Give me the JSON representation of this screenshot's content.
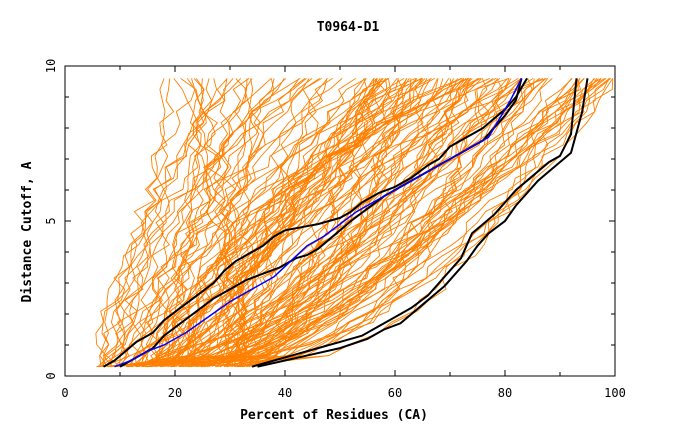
{
  "chart_data": {
    "type": "line",
    "title": "T0964-D1",
    "xlabel": "Percent of Residues (CA)",
    "ylabel": "Distance Cutoff, A",
    "xlim": [
      0,
      100
    ],
    "ylim": [
      0,
      10
    ],
    "x_ticks": [
      0,
      20,
      40,
      60,
      80,
      100
    ],
    "y_ticks": [
      0,
      5,
      10
    ],
    "grid": false,
    "colors": {
      "models": "#ff8000",
      "highlight": "#000000",
      "reference": "#0000ff"
    },
    "model_curves_description_count": 0,
    "series": [
      {
        "role": "highlight",
        "color": "#000000",
        "x": [
          7,
          9,
          11,
          13,
          16,
          18,
          21,
          24,
          27,
          29,
          31,
          33,
          36,
          38,
          40,
          43,
          46,
          48,
          50,
          52,
          54,
          57,
          60,
          63,
          66,
          68,
          70,
          72,
          74,
          76,
          78,
          80,
          82,
          84
        ],
        "y": [
          0.3,
          0.5,
          0.8,
          1.1,
          1.4,
          1.8,
          2.2,
          2.6,
          3.0,
          3.4,
          3.7,
          3.9,
          4.2,
          4.5,
          4.7,
          4.8,
          4.9,
          5.0,
          5.1,
          5.3,
          5.6,
          5.9,
          6.1,
          6.4,
          6.8,
          7.0,
          7.4,
          7.6,
          7.8,
          8.0,
          8.3,
          8.6,
          9.0,
          9.6
        ]
      },
      {
        "role": "highlight",
        "color": "#000000",
        "x": [
          10,
          13,
          16,
          18,
          21,
          24,
          27,
          30,
          33,
          36,
          39,
          42,
          44,
          46,
          48,
          50,
          52,
          55,
          58,
          61,
          64,
          67,
          70,
          73,
          76,
          78,
          80,
          82,
          83
        ],
        "y": [
          0.3,
          0.6,
          0.9,
          1.3,
          1.7,
          2.1,
          2.5,
          2.8,
          3.1,
          3.3,
          3.5,
          3.8,
          3.9,
          4.1,
          4.4,
          4.7,
          5.0,
          5.4,
          5.8,
          6.1,
          6.4,
          6.7,
          7.0,
          7.3,
          7.6,
          8.0,
          8.4,
          8.9,
          9.6
        ]
      },
      {
        "role": "reference",
        "color": "#0000ff",
        "x": [
          9,
          12,
          15,
          18,
          22,
          26,
          30,
          34,
          38,
          41,
          44,
          47,
          50,
          53,
          56,
          59,
          62,
          65,
          68,
          71,
          74,
          77,
          79,
          81,
          83
        ],
        "y": [
          0.3,
          0.5,
          0.8,
          1.0,
          1.4,
          1.9,
          2.4,
          2.8,
          3.2,
          3.7,
          4.2,
          4.5,
          4.9,
          5.3,
          5.6,
          5.9,
          6.2,
          6.5,
          6.8,
          7.1,
          7.4,
          7.7,
          8.3,
          8.9,
          9.6
        ]
      },
      {
        "role": "highlight",
        "color": "#000000",
        "x": [
          35,
          40,
          45,
          50,
          55,
          58,
          61,
          63,
          65,
          67,
          69,
          71,
          73,
          75,
          77,
          80,
          82,
          84,
          86,
          88,
          90,
          92,
          94,
          95
        ],
        "y": [
          0.3,
          0.5,
          0.7,
          0.9,
          1.2,
          1.5,
          1.7,
          2.0,
          2.3,
          2.6,
          2.9,
          3.3,
          3.7,
          4.2,
          4.6,
          5.0,
          5.5,
          5.9,
          6.3,
          6.6,
          6.9,
          7.2,
          8.5,
          9.6
        ]
      },
      {
        "role": "highlight",
        "color": "#000000",
        "x": [
          34,
          38,
          42,
          46,
          50,
          54,
          57,
          60,
          63,
          66,
          68,
          70,
          72,
          73,
          74,
          76,
          78,
          80,
          82,
          84,
          86,
          88,
          90,
          92,
          93
        ],
        "y": [
          0.3,
          0.5,
          0.7,
          0.9,
          1.1,
          1.3,
          1.6,
          1.9,
          2.2,
          2.6,
          3.0,
          3.4,
          3.8,
          4.2,
          4.6,
          4.9,
          5.2,
          5.6,
          6.0,
          6.3,
          6.6,
          6.9,
          7.1,
          7.8,
          9.6
        ]
      }
    ]
  }
}
